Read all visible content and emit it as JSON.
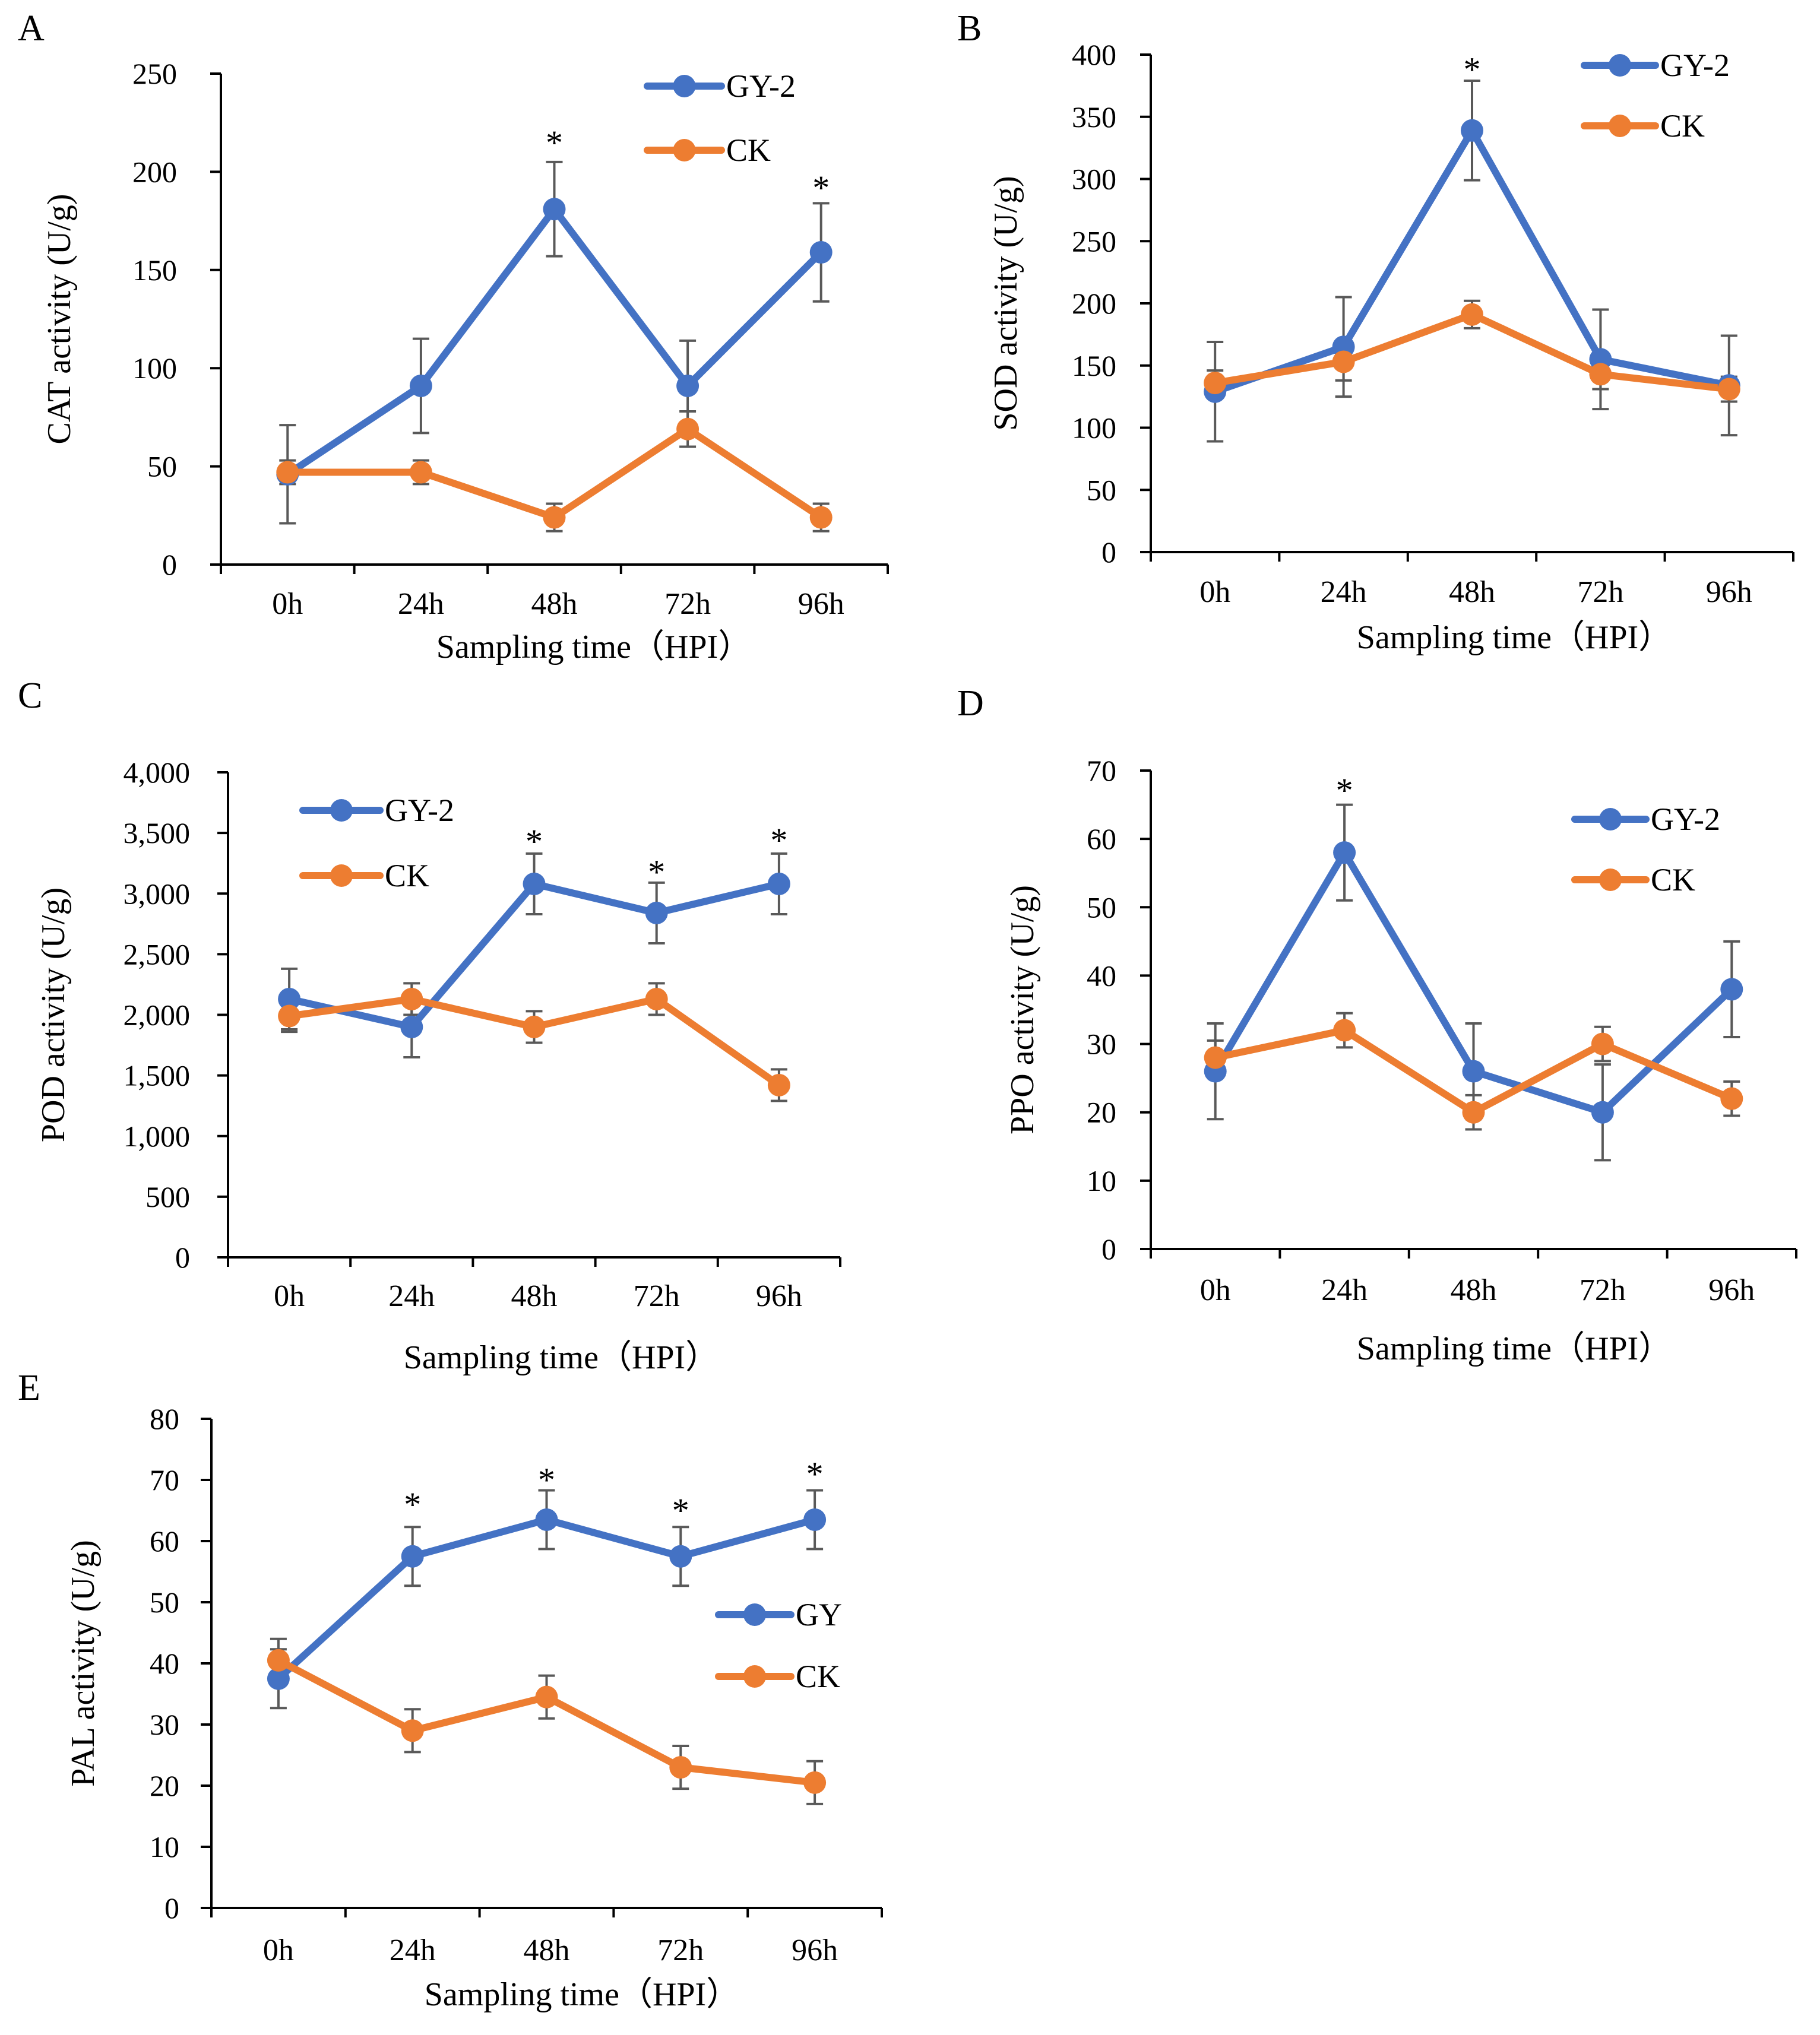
{
  "colors": {
    "gy": "#4472C4",
    "ck": "#ED7D31",
    "axis": "#000000",
    "errorbar": "#595959"
  },
  "chart_data": [
    {
      "panel": "A",
      "type": "line",
      "ylabel": "CAT activity (U/g)",
      "xlabel": "Sampling time（HPI）",
      "categories": [
        "0h",
        "24h",
        "48h",
        "72h",
        "96h"
      ],
      "ylim": [
        0,
        250
      ],
      "yticks": [
        "0",
        "50",
        "100",
        "150",
        "200",
        "250"
      ],
      "ytick_values": [
        0,
        50,
        100,
        150,
        200,
        250
      ],
      "legend_position": "top-right",
      "series": [
        {
          "name": "GY-2",
          "color": "#4472C4",
          "values": [
            46,
            91,
            181,
            91,
            159
          ],
          "errors": [
            25,
            24,
            24,
            23,
            25
          ]
        },
        {
          "name": "CK",
          "color": "#ED7D31",
          "values": [
            47,
            47,
            24,
            69,
            24
          ],
          "errors": [
            6,
            6,
            7,
            9,
            7
          ]
        }
      ],
      "significance": [
        {
          "label": "*",
          "category": "48h",
          "y": 218
        },
        {
          "label": "*",
          "category": "96h",
          "y": 195
        }
      ]
    },
    {
      "panel": "B",
      "type": "line",
      "ylabel": "SOD activity (U/g)",
      "xlabel": "Sampling time（HPI）",
      "categories": [
        "0h",
        "24h",
        "48h",
        "72h",
        "96h"
      ],
      "ylim": [
        0,
        400
      ],
      "yticks": [
        "0",
        "50",
        "100",
        "150",
        "200",
        "250",
        "300",
        "350",
        "400"
      ],
      "ytick_values": [
        0,
        50,
        100,
        150,
        200,
        250,
        300,
        350,
        400
      ],
      "legend_position": "top-right",
      "series": [
        {
          "name": "GY-2",
          "color": "#4472C4",
          "values": [
            129,
            165,
            339,
            155,
            134
          ],
          "errors": [
            40,
            40,
            40,
            40,
            40
          ]
        },
        {
          "name": "CK",
          "color": "#ED7D31",
          "values": [
            136,
            153,
            191,
            143,
            131
          ],
          "errors": [
            10,
            15,
            11,
            12,
            10
          ]
        }
      ],
      "significance": [
        {
          "label": "*",
          "category": "48h",
          "y": 393
        }
      ]
    },
    {
      "panel": "C",
      "type": "line",
      "ylabel": "POD activity (U/g)",
      "xlabel": "Sampling time（HPI）",
      "categories": [
        "0h",
        "24h",
        "48h",
        "72h",
        "96h"
      ],
      "ylim": [
        0,
        4000
      ],
      "yticks": [
        "0",
        "500",
        "1,000",
        "1,500",
        "2,000",
        "2,500",
        "3,000",
        "3,500",
        "4,000"
      ],
      "ytick_values": [
        0,
        500,
        1000,
        1500,
        2000,
        2500,
        3000,
        3500,
        4000
      ],
      "legend_position": "top-left",
      "series": [
        {
          "name": "GY-2",
          "color": "#4472C4",
          "values": [
            2130,
            1900,
            3080,
            2840,
            3080
          ],
          "errors": [
            250,
            250,
            250,
            250,
            250
          ]
        },
        {
          "name": "CK",
          "color": "#ED7D31",
          "values": [
            1990,
            2130,
            1900,
            2130,
            1420
          ],
          "errors": [
            130,
            130,
            130,
            130,
            130
          ]
        }
      ],
      "significance": [
        {
          "label": "*",
          "category": "48h",
          "y": 3480
        },
        {
          "label": "*",
          "category": "72h",
          "y": 3230
        },
        {
          "label": "*",
          "category": "96h",
          "y": 3490
        }
      ]
    },
    {
      "panel": "D",
      "type": "line",
      "ylabel": "PPO activity (U/g)",
      "xlabel": "Sampling time（HPI）",
      "categories": [
        "0h",
        "24h",
        "48h",
        "72h",
        "96h"
      ],
      "ylim": [
        0,
        70
      ],
      "yticks": [
        "0",
        "10",
        "20",
        "30",
        "40",
        "50",
        "60",
        "70"
      ],
      "ytick_values": [
        0,
        10,
        20,
        30,
        40,
        50,
        60,
        70
      ],
      "legend_position": "top-right",
      "series": [
        {
          "name": "GY-2",
          "color": "#4472C4",
          "values": [
            26,
            58,
            26,
            20,
            38
          ],
          "errors": [
            7,
            7,
            7,
            7,
            7
          ]
        },
        {
          "name": "CK",
          "color": "#ED7D31",
          "values": [
            28,
            32,
            20,
            30,
            22
          ],
          "errors": [
            2.5,
            2.5,
            2.5,
            2.5,
            2.5
          ]
        }
      ],
      "significance": [
        {
          "label": "*",
          "category": "24h",
          "y": 68
        }
      ]
    },
    {
      "panel": "E",
      "type": "line",
      "ylabel": "PAL activity (U/g)",
      "xlabel": "Sampling time（HPI）",
      "categories": [
        "0h",
        "24h",
        "48h",
        "72h",
        "96h"
      ],
      "ylim": [
        0,
        80
      ],
      "yticks": [
        "0",
        "10",
        "20",
        "30",
        "40",
        "50",
        "60",
        "70",
        "80"
      ],
      "ytick_values": [
        0,
        10,
        20,
        30,
        40,
        50,
        60,
        70,
        80
      ],
      "legend_position": "center-right",
      "series": [
        {
          "name": "GY",
          "color": "#4472C4",
          "values": [
            37.5,
            57.5,
            63.5,
            57.5,
            63.5
          ],
          "errors": [
            4.8,
            4.8,
            4.8,
            4.8,
            4.8
          ]
        },
        {
          "name": "CK",
          "color": "#ED7D31",
          "values": [
            40.5,
            29,
            34.5,
            23,
            20.5
          ],
          "errors": [
            3.5,
            3.5,
            3.5,
            3.5,
            3.5
          ]
        }
      ],
      "significance": [
        {
          "label": "*",
          "category": "24h",
          "y": 67
        },
        {
          "label": "*",
          "category": "48h",
          "y": 71
        },
        {
          "label": "*",
          "category": "72h",
          "y": 66
        },
        {
          "label": "*",
          "category": "96h",
          "y": 72
        }
      ]
    }
  ]
}
